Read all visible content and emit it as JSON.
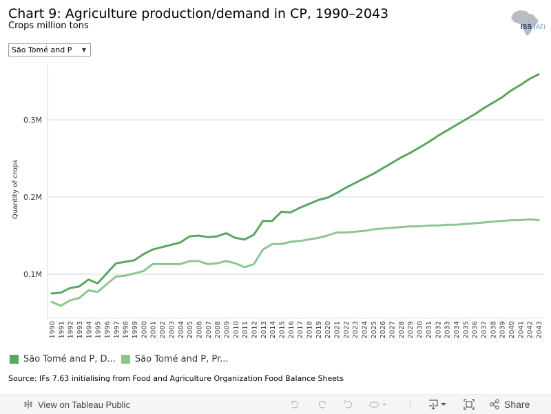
{
  "header": {
    "title": "Chart 9: Agriculture production/demand in CP, 1990–2043",
    "subtitle": "Crops million tons",
    "logo_text_main": "ISS",
    "logo_text_sub": "AFI"
  },
  "filter": {
    "selected": "São Tomé and P",
    "icon": "chevron-down-icon"
  },
  "legend": {
    "items": [
      {
        "label": "São Tomé and P, D...",
        "color": "#59a65f"
      },
      {
        "label": "São Tomé and P, Pr...",
        "color": "#8cc68f"
      }
    ]
  },
  "source": "Source: IFs 7.63 initialising from Food and Agriculture Organization Food Balance Sheets",
  "toolbar": {
    "view_label": "View on Tableau Public",
    "share_label": "Share",
    "icons": [
      "tableau-icon",
      "undo-icon",
      "redo-icon",
      "revert-icon",
      "refresh-icon",
      "download-icon",
      "fullscreen-icon",
      "share-icon"
    ]
  },
  "chart_data": {
    "type": "line",
    "title": "Chart 9: Agriculture production/demand in CP, 1990–2043",
    "subtitle": "Crops million tons",
    "xlabel": "",
    "ylabel": "Quantity of crops",
    "ylim": [
      0.045,
      0.37
    ],
    "yticks": [
      0.1,
      0.2,
      0.3
    ],
    "ytick_labels": [
      "0.1M",
      "0.2M",
      "0.3M"
    ],
    "grid": "horizontal",
    "legend_position": "bottom-left",
    "x": [
      1990,
      1991,
      1992,
      1993,
      1994,
      1995,
      1996,
      1997,
      1998,
      1999,
      2000,
      2001,
      2002,
      2003,
      2004,
      2005,
      2006,
      2007,
      2008,
      2009,
      2010,
      2011,
      2012,
      2013,
      2014,
      2015,
      2016,
      2017,
      2018,
      2019,
      2020,
      2021,
      2022,
      2023,
      2024,
      2025,
      2026,
      2027,
      2028,
      2029,
      2030,
      2031,
      2032,
      2033,
      2034,
      2035,
      2036,
      2037,
      2038,
      2039,
      2040,
      2041,
      2042,
      2043
    ],
    "series": [
      {
        "name": "São Tomé and P, Demand",
        "legend_label": "São Tomé and P, D...",
        "color": "#59a65f",
        "values": [
          0.075,
          0.076,
          0.082,
          0.084,
          0.093,
          0.088,
          0.101,
          0.114,
          0.116,
          0.118,
          0.126,
          0.132,
          0.135,
          0.138,
          0.141,
          0.149,
          0.15,
          0.148,
          0.149,
          0.153,
          0.147,
          0.145,
          0.151,
          0.169,
          0.169,
          0.181,
          0.18,
          0.186,
          0.191,
          0.196,
          0.199,
          0.205,
          0.212,
          0.218,
          0.224,
          0.23,
          0.237,
          0.244,
          0.251,
          0.257,
          0.264,
          0.271,
          0.279,
          0.286,
          0.293,
          0.3,
          0.307,
          0.315,
          0.322,
          0.329,
          0.338,
          0.345,
          0.353,
          0.359
        ]
      },
      {
        "name": "São Tomé and P, Production",
        "legend_label": "São Tomé and P, Pr...",
        "color": "#8cc68f",
        "values": [
          0.064,
          0.059,
          0.066,
          0.069,
          0.079,
          0.077,
          0.087,
          0.097,
          0.098,
          0.101,
          0.104,
          0.113,
          0.113,
          0.113,
          0.113,
          0.117,
          0.117,
          0.113,
          0.114,
          0.117,
          0.114,
          0.109,
          0.113,
          0.132,
          0.139,
          0.139,
          0.142,
          0.143,
          0.145,
          0.147,
          0.15,
          0.154,
          0.154,
          0.155,
          0.156,
          0.158,
          0.159,
          0.16,
          0.161,
          0.162,
          0.162,
          0.163,
          0.163,
          0.164,
          0.164,
          0.165,
          0.166,
          0.167,
          0.168,
          0.169,
          0.17,
          0.17,
          0.171,
          0.17
        ]
      }
    ]
  }
}
